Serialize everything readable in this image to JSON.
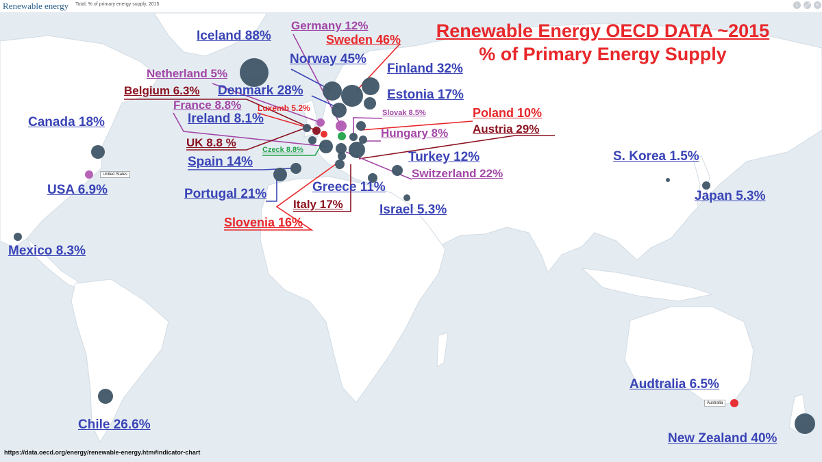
{
  "header": {
    "brand": "Renewable energy",
    "subtitle": "Total, % of primary energy supply, 2015",
    "controls": [
      "info-icon",
      "fullscreen-icon",
      "share-icon"
    ]
  },
  "title": {
    "line1": "Renewable Energy OECD DATA ~2015",
    "line2": "% of Primary Energy Supply"
  },
  "source": "https://data.oecd.org/energy/renewable-energy.htm#indicator-chart",
  "tooltips": {
    "usa": "United States",
    "australia": "Australia"
  },
  "colors": {
    "ocean": "#e4ecf2",
    "land": "#ffffff",
    "bubble": "#3f5566",
    "highlight_purple": "#b25ab3",
    "highlight_red": "#e8272a",
    "highlight_green": "#22a34a",
    "highlight_darkred": "#8b1220"
  },
  "countries": [
    {
      "key": "iceland",
      "label": "Iceland 88%",
      "value": 88
    },
    {
      "key": "germany",
      "label": "Germany 12%",
      "value": 12
    },
    {
      "key": "sweden",
      "label": "Sweden 46%",
      "value": 46
    },
    {
      "key": "norway",
      "label": "Norway 45%",
      "value": 45
    },
    {
      "key": "finland",
      "label": "Finland 32%",
      "value": 32
    },
    {
      "key": "netherland",
      "label": "Netherland 5%",
      "value": 5
    },
    {
      "key": "belgium",
      "label": "Belgium 6.3%",
      "value": 6.3
    },
    {
      "key": "denmark",
      "label": "Denmark 28%",
      "value": 28
    },
    {
      "key": "estonia",
      "label": "Estonia 17%",
      "value": 17
    },
    {
      "key": "france",
      "label": "France 8.8%",
      "value": 8.8
    },
    {
      "key": "luxemb",
      "label": "Luxemb 5.2%",
      "value": 5.2
    },
    {
      "key": "slovak",
      "label": "Slovak 8.5%",
      "value": 8.5
    },
    {
      "key": "poland",
      "label": "Poland 10%",
      "value": 10
    },
    {
      "key": "canada",
      "label": "Canada 18%",
      "value": 18
    },
    {
      "key": "ireland",
      "label": "Ireland 8.1%",
      "value": 8.1
    },
    {
      "key": "hungary",
      "label": "Hungary 8%",
      "value": 8
    },
    {
      "key": "austria",
      "label": "Austria  29%",
      "value": 29
    },
    {
      "key": "uk",
      "label": "UK 8.8 %",
      "value": 8.8
    },
    {
      "key": "czeck",
      "label": "Czeck 8.8%",
      "value": 8.8
    },
    {
      "key": "spain",
      "label": "Spain 14%",
      "value": 14
    },
    {
      "key": "turkey",
      "label": "Turkey 12%",
      "value": 12
    },
    {
      "key": "skorea",
      "label": "S. Korea 1.5%",
      "value": 1.5
    },
    {
      "key": "usa",
      "label": "USA 6.9%",
      "value": 6.9
    },
    {
      "key": "switzerland",
      "label": "Switzerland 22%",
      "value": 22
    },
    {
      "key": "greece",
      "label": "Greece 11%",
      "value": 11
    },
    {
      "key": "portugal",
      "label": "Portugal 21%",
      "value": 21
    },
    {
      "key": "japan",
      "label": "Japan 5.3%",
      "value": 5.3
    },
    {
      "key": "italy",
      "label": "Italy 17%",
      "value": 17
    },
    {
      "key": "israel",
      "label": "Israel 5.3%",
      "value": 5.3
    },
    {
      "key": "slovenia",
      "label": "Slovenia 16%",
      "value": 16
    },
    {
      "key": "mexico",
      "label": "Mexico 8.3%",
      "value": 8.3
    },
    {
      "key": "audtralia",
      "label": "Audtralia 6.5%",
      "value": 6.5
    },
    {
      "key": "chile",
      "label": "Chile 26.6%",
      "value": 26.6
    },
    {
      "key": "newzealand",
      "label": "New Zealand 40%",
      "value": 40
    }
  ]
}
